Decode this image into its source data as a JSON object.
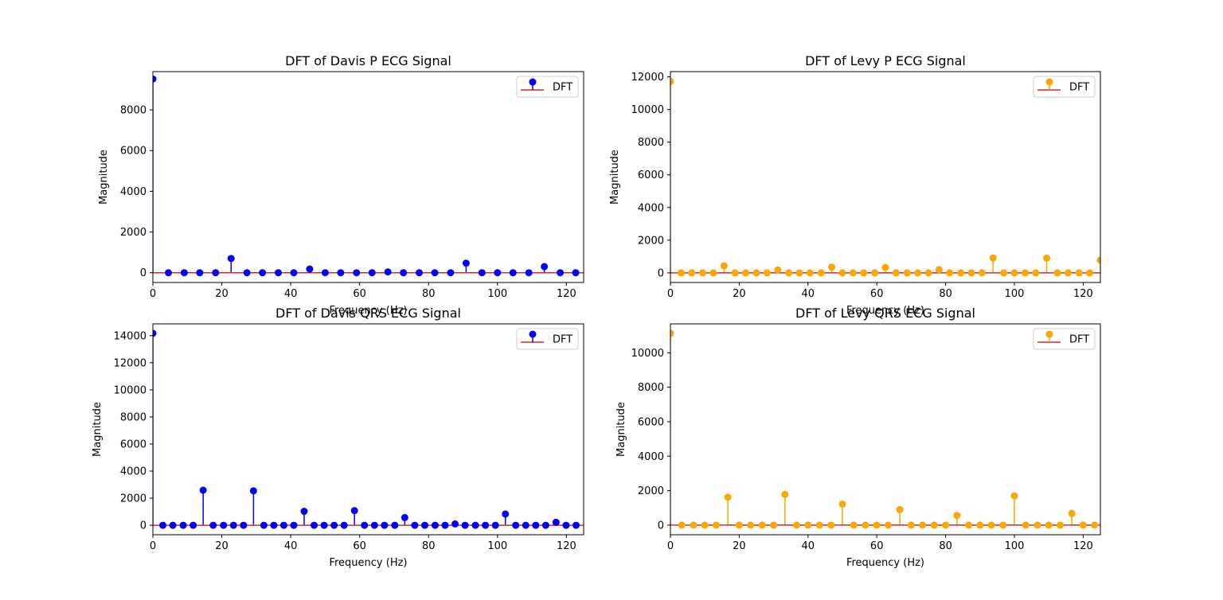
{
  "figure": {
    "colors": {
      "davis": "#0000ff",
      "levy": "#ffa500",
      "baseline": "#d62728",
      "axes": "#000000"
    }
  },
  "chart_data": [
    {
      "type": "stem",
      "title": "DFT of Davis P ECG Signal",
      "xlabel": "Frequency (Hz)",
      "ylabel": "Magnitude",
      "xlim": [
        0,
        125
      ],
      "ylim": [
        -480,
        9880
      ],
      "xticks": [
        0,
        20,
        40,
        60,
        80,
        100,
        120
      ],
      "yticks": [
        0,
        2000,
        4000,
        6000,
        8000
      ],
      "legend": {
        "label": "DFT",
        "loc": "upper right"
      },
      "series": [
        {
          "name": "DFT",
          "color": "#0000ff",
          "x": [
            0,
            4.5,
            9.1,
            13.6,
            18.2,
            22.7,
            27.3,
            31.8,
            36.4,
            40.9,
            45.5,
            50.0,
            54.5,
            59.1,
            63.6,
            68.2,
            72.7,
            77.3,
            81.8,
            86.4,
            90.9,
            95.5,
            100.0,
            104.5,
            109.1,
            113.6,
            118.2,
            122.7
          ],
          "y": [
            9520,
            0,
            0,
            0,
            0,
            700,
            0,
            0,
            0,
            0,
            180,
            0,
            0,
            0,
            0,
            40,
            0,
            0,
            0,
            0,
            470,
            0,
            0,
            0,
            0,
            300,
            0,
            0
          ]
        }
      ]
    },
    {
      "type": "stem",
      "title": "DFT of Levy P ECG Signal",
      "xlabel": "Frequency (Hz)",
      "ylabel": "Magnitude",
      "xlim": [
        0,
        125
      ],
      "ylim": [
        -590,
        12320
      ],
      "xticks": [
        0,
        20,
        40,
        60,
        80,
        100,
        120
      ],
      "yticks": [
        0,
        2000,
        4000,
        6000,
        8000,
        10000,
        12000
      ],
      "legend": {
        "label": "DFT",
        "loc": "upper right"
      },
      "series": [
        {
          "name": "DFT",
          "color": "#ffa500",
          "x": [
            0,
            3.1,
            6.2,
            9.4,
            12.5,
            15.6,
            18.8,
            21.9,
            25.0,
            28.1,
            31.2,
            34.4,
            37.5,
            40.6,
            43.8,
            46.9,
            50.0,
            53.1,
            56.2,
            59.4,
            62.5,
            65.6,
            68.8,
            71.9,
            75.0,
            78.1,
            81.2,
            84.4,
            87.5,
            90.6,
            93.8,
            96.9,
            100.0,
            103.1,
            106.2,
            109.4,
            112.5,
            115.6,
            118.8,
            121.9,
            125.0
          ],
          "y": [
            11720,
            0,
            0,
            0,
            0,
            430,
            0,
            0,
            0,
            0,
            180,
            0,
            0,
            0,
            0,
            350,
            0,
            0,
            0,
            0,
            330,
            0,
            0,
            0,
            0,
            200,
            0,
            0,
            0,
            0,
            910,
            0,
            0,
            0,
            0,
            900,
            0,
            0,
            0,
            0,
            780
          ]
        }
      ]
    },
    {
      "type": "stem",
      "title": "DFT of Davis QRS ECG Signal",
      "xlabel": "Frequency (Hz)",
      "ylabel": "Magnitude",
      "xlim": [
        0,
        125
      ],
      "ylim": [
        -700,
        14870
      ],
      "xticks": [
        0,
        20,
        40,
        60,
        80,
        100,
        120
      ],
      "yticks": [
        0,
        2000,
        4000,
        6000,
        8000,
        10000,
        12000,
        14000
      ],
      "legend": {
        "label": "DFT",
        "loc": "upper right"
      },
      "series": [
        {
          "name": "DFT",
          "color": "#0000ff",
          "x": [
            0,
            2.9,
            5.8,
            8.8,
            11.7,
            14.6,
            17.5,
            20.5,
            23.4,
            26.3,
            29.2,
            32.2,
            35.1,
            38.0,
            40.9,
            43.9,
            46.8,
            49.7,
            52.6,
            55.5,
            58.5,
            61.4,
            64.3,
            67.2,
            70.2,
            73.1,
            76.0,
            78.9,
            81.9,
            84.8,
            87.7,
            90.6,
            93.6,
            96.5,
            99.4,
            102.3,
            105.3,
            108.2,
            111.1,
            114.0,
            117.0,
            119.9,
            122.8
          ],
          "y": [
            14170,
            0,
            0,
            0,
            0,
            2590,
            0,
            0,
            0,
            0,
            2540,
            0,
            0,
            0,
            0,
            1030,
            0,
            0,
            0,
            0,
            1080,
            0,
            0,
            0,
            0,
            570,
            0,
            0,
            0,
            0,
            100,
            0,
            0,
            0,
            0,
            830,
            0,
            0,
            0,
            0,
            220,
            0,
            0
          ]
        }
      ]
    },
    {
      "type": "stem",
      "title": "DFT of Levy QRS ECG Signal",
      "xlabel": "Frequency (Hz)",
      "ylabel": "Magnitude",
      "xlim": [
        0,
        125
      ],
      "ylim": [
        -560,
        11680
      ],
      "xticks": [
        0,
        20,
        40,
        60,
        80,
        100,
        120
      ],
      "yticks": [
        0,
        2000,
        4000,
        6000,
        8000,
        10000
      ],
      "legend": {
        "label": "DFT",
        "loc": "upper right"
      },
      "series": [
        {
          "name": "DFT",
          "color": "#ffa500",
          "x": [
            0,
            3.3,
            6.7,
            10.0,
            13.3,
            16.7,
            20.0,
            23.3,
            26.7,
            30.0,
            33.3,
            36.7,
            40.0,
            43.3,
            46.7,
            50.0,
            53.3,
            56.7,
            60.0,
            63.3,
            66.7,
            70.0,
            73.3,
            76.7,
            80.0,
            83.3,
            86.7,
            90.0,
            93.3,
            96.7,
            100.0,
            103.3,
            106.7,
            110.0,
            113.3,
            116.7,
            120.0,
            123.3
          ],
          "y": [
            11130,
            0,
            0,
            0,
            0,
            1620,
            0,
            0,
            0,
            0,
            1780,
            0,
            0,
            0,
            0,
            1220,
            0,
            0,
            0,
            0,
            900,
            0,
            0,
            0,
            0,
            560,
            0,
            0,
            0,
            0,
            1700,
            0,
            0,
            0,
            0,
            680,
            0,
            0
          ]
        }
      ]
    }
  ]
}
